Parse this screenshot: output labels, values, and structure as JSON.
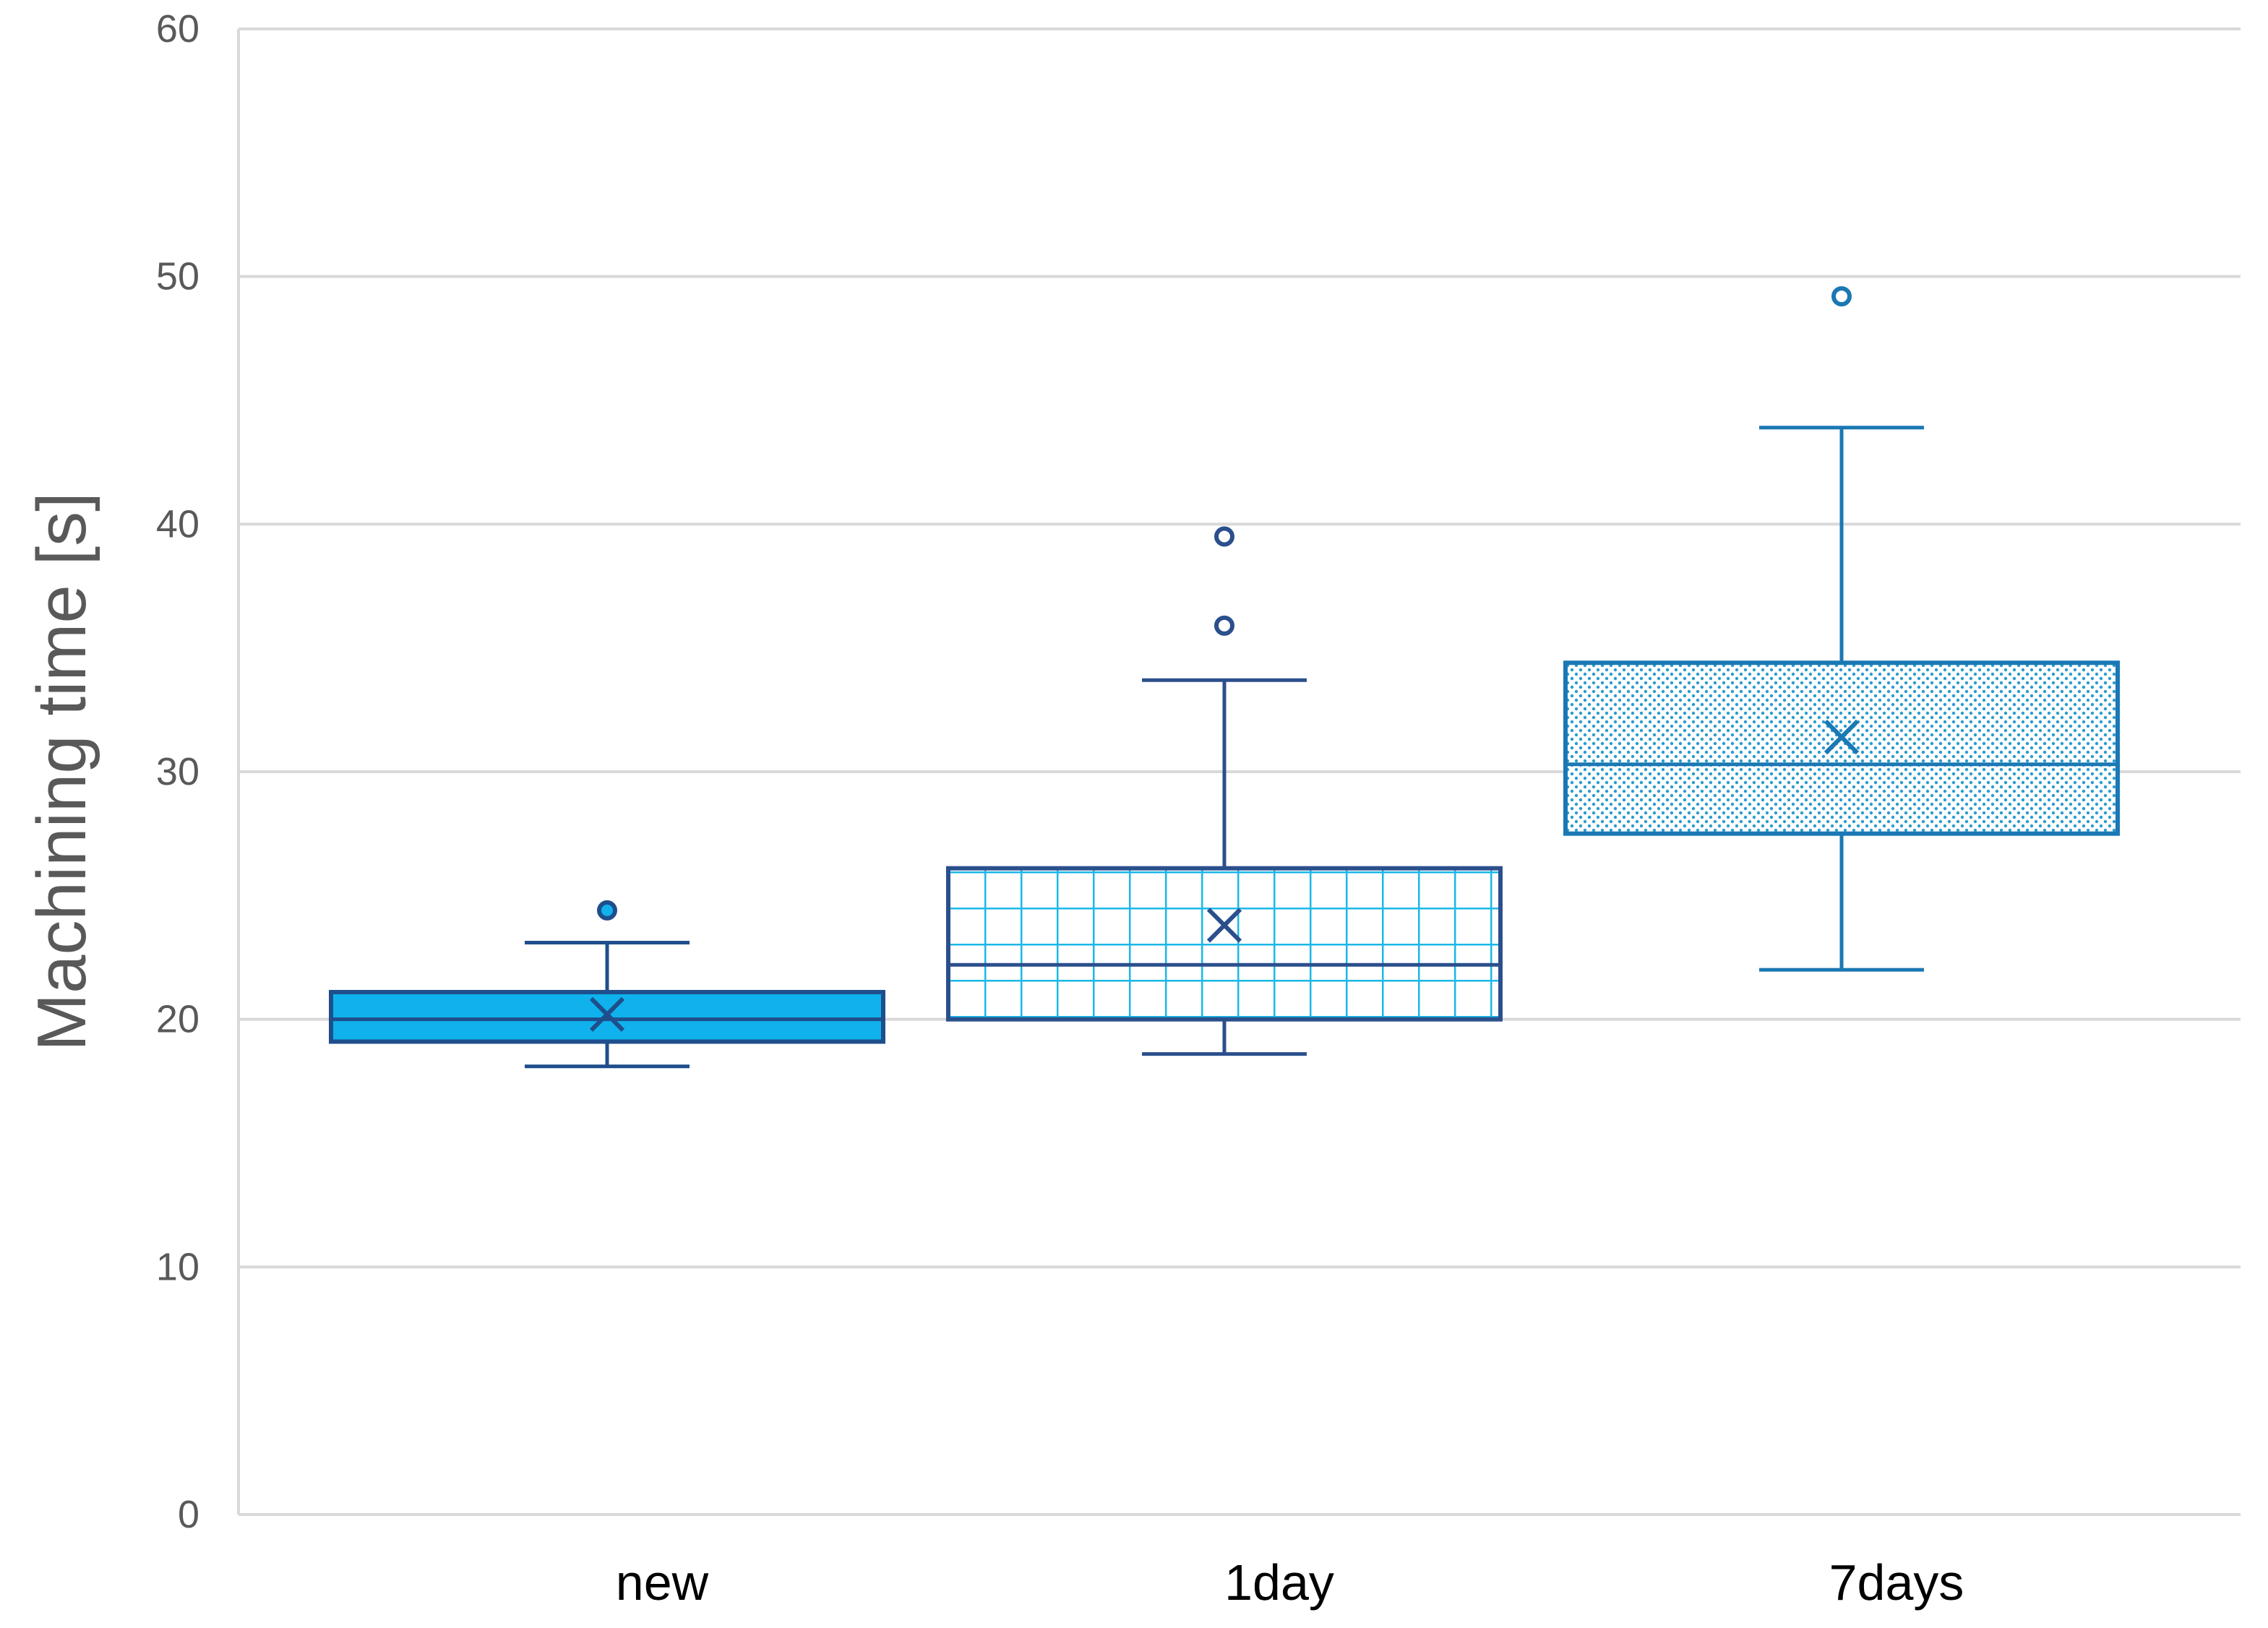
{
  "chart_data": {
    "type": "box",
    "ylabel": "Machining time [s]",
    "xlabel": "",
    "ylim": [
      0,
      60
    ],
    "yticks": [
      0,
      10,
      20,
      30,
      40,
      50,
      60
    ],
    "ytick_labels": [
      "0",
      "10",
      "20",
      "30",
      "40",
      "50",
      "60"
    ],
    "grid": true,
    "categories": [
      "new",
      "1day",
      "7days"
    ],
    "boxes": [
      {
        "category": "new",
        "min": 18.1,
        "q1": 19.1,
        "median": 20.0,
        "q3": 21.1,
        "max": 23.1,
        "mean": 20.2,
        "outliers": [
          24.4
        ],
        "fill": "solid"
      },
      {
        "category": "1day",
        "min": 18.6,
        "q1": 20.0,
        "median": 22.2,
        "q3": 26.1,
        "max": 33.7,
        "mean": 23.8,
        "outliers": [
          35.9,
          39.5
        ],
        "fill": "grid"
      },
      {
        "category": "7days",
        "min": 22.0,
        "q1": 27.5,
        "median": 30.3,
        "q3": 34.4,
        "max": 43.9,
        "mean": 31.4,
        "outliers": [
          49.2
        ],
        "fill": "dots"
      }
    ],
    "colors": {
      "new_fill": "#0fb2ec",
      "new_line": "#1f4e8c",
      "day1_line": "#2b4f8c",
      "day1_hatch": "#1ab8e8",
      "day7_line": "#1a78b4",
      "day7_dots": "#2a9bd0",
      "grid": "#d9d9d9"
    }
  }
}
